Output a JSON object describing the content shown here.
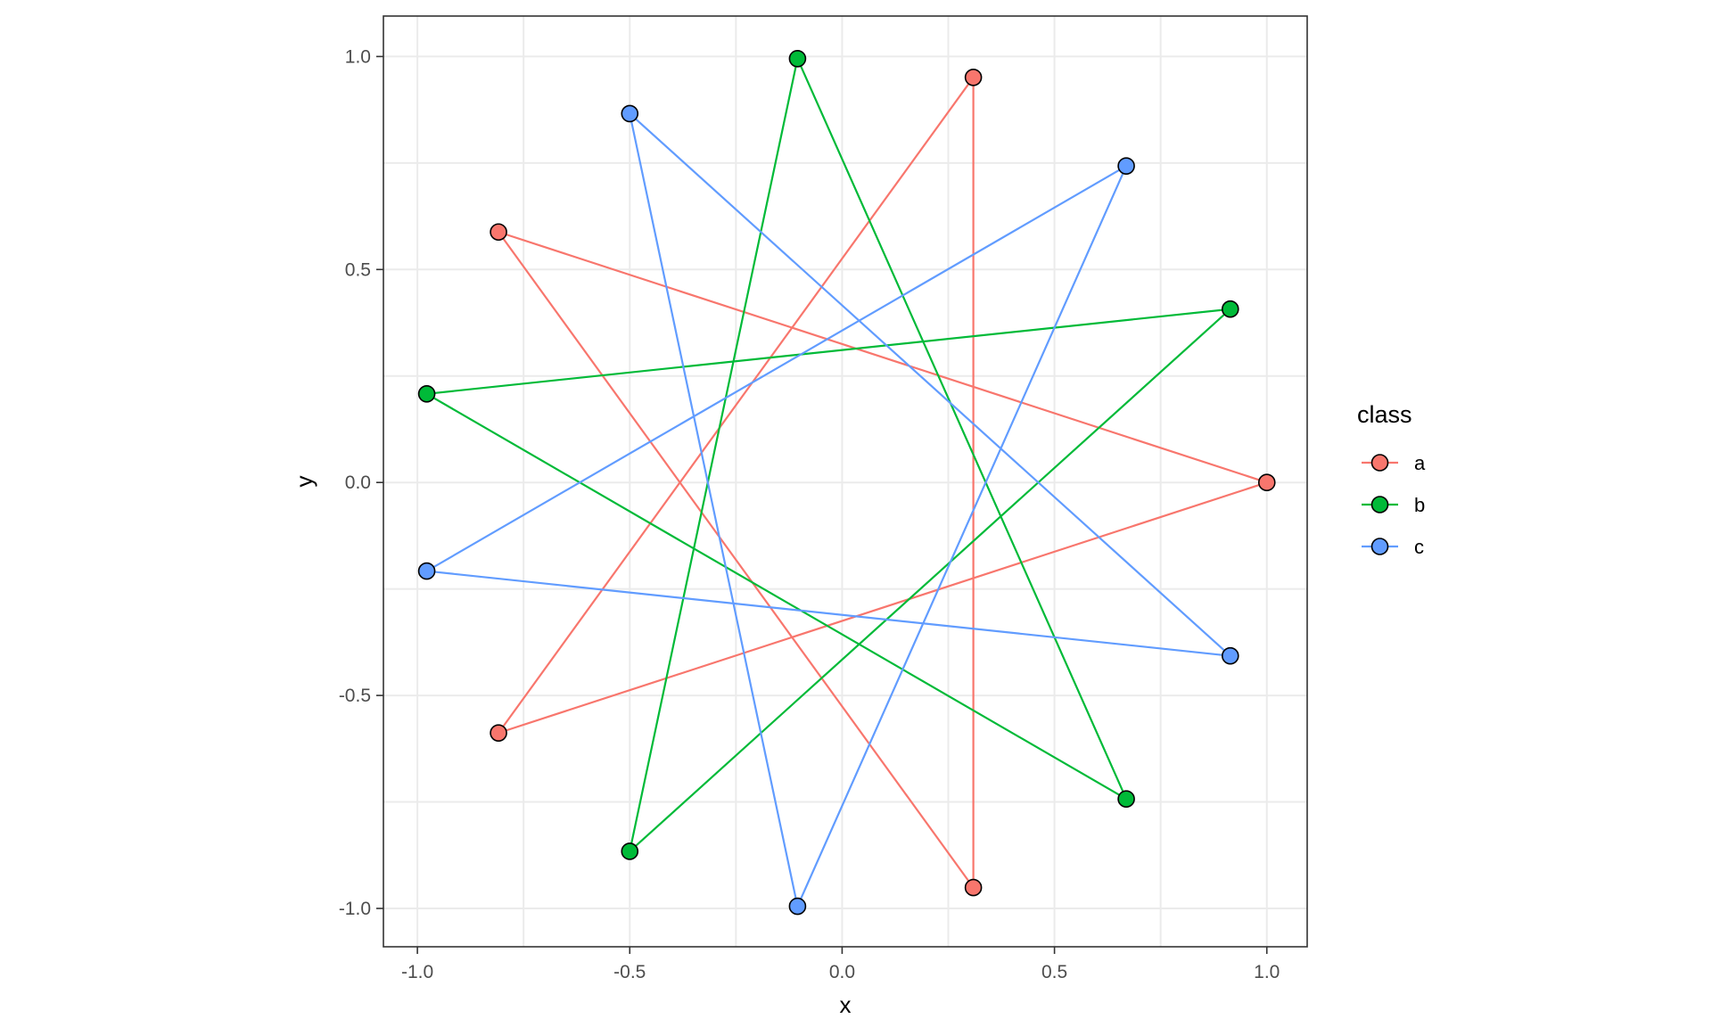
{
  "chart_data": {
    "type": "line",
    "title": "",
    "xlabel": "x",
    "ylabel": "y",
    "xlim": [
      -1.08,
      1.095
    ],
    "ylim": [
      -1.09,
      1.095
    ],
    "x_ticks": [
      {
        "value": -1.0,
        "label": "-1.0"
      },
      {
        "value": -0.5,
        "label": "-0.5"
      },
      {
        "value": 0.0,
        "label": "0.0"
      },
      {
        "value": 0.5,
        "label": "0.5"
      },
      {
        "value": 1.0,
        "label": "1.0"
      }
    ],
    "y_ticks": [
      {
        "value": -1.0,
        "label": "-1.0"
      },
      {
        "value": -0.5,
        "label": "-0.5"
      },
      {
        "value": 0.0,
        "label": "0.0"
      },
      {
        "value": 0.5,
        "label": "0.5"
      },
      {
        "value": 1.0,
        "label": "1.0"
      }
    ],
    "grid": true,
    "legend": {
      "title": "class",
      "position": "right"
    },
    "series": [
      {
        "name": "a",
        "color": "#F8766D",
        "points": [
          {
            "x": 1.0,
            "y": 0.0
          },
          {
            "x": -0.809,
            "y": 0.588
          },
          {
            "x": 0.309,
            "y": -0.951
          },
          {
            "x": 0.309,
            "y": 0.951
          },
          {
            "x": -0.809,
            "y": -0.588
          },
          {
            "x": 1.0,
            "y": 0.0
          }
        ]
      },
      {
        "name": "b",
        "color": "#00BA38",
        "points": [
          {
            "x": 0.914,
            "y": 0.407
          },
          {
            "x": -0.978,
            "y": 0.208
          },
          {
            "x": 0.669,
            "y": -0.743
          },
          {
            "x": -0.105,
            "y": 0.995
          },
          {
            "x": -0.5,
            "y": -0.866
          },
          {
            "x": 0.914,
            "y": 0.407
          }
        ]
      },
      {
        "name": "c",
        "color": "#619CFF",
        "points": [
          {
            "x": 0.669,
            "y": 0.743
          },
          {
            "x": -0.978,
            "y": -0.208
          },
          {
            "x": 0.914,
            "y": -0.407
          },
          {
            "x": -0.5,
            "y": 0.866
          },
          {
            "x": -0.105,
            "y": -0.995
          },
          {
            "x": 0.669,
            "y": 0.743
          }
        ]
      }
    ]
  }
}
